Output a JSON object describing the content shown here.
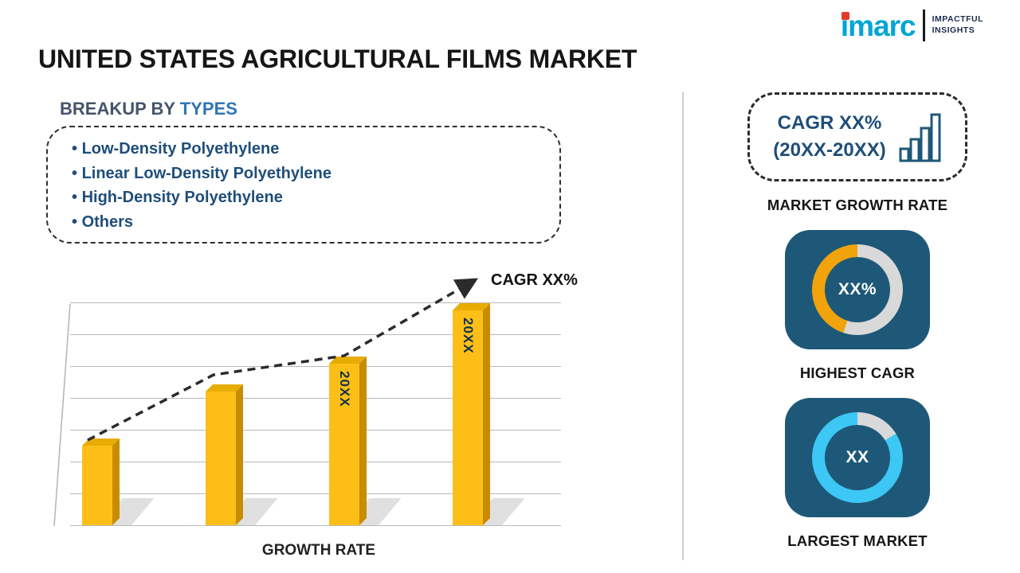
{
  "logo": {
    "brand": "imarc",
    "tagline": [
      "IMPACTFUL",
      "INSIGHTS"
    ]
  },
  "title": "UNITED STATES AGRICULTURAL FILMS MARKET",
  "breakup": {
    "heading_prefix": "BREAKUP BY",
    "heading_highlight": "TYPES",
    "items": [
      "Low-Density Polyethylene",
      "Linear Low-Density Polyethylene",
      "High-Density Polyethylene",
      "Others"
    ]
  },
  "chart_data": {
    "type": "bar",
    "title": "",
    "categories": [
      "",
      "",
      "20XX",
      "20XX"
    ],
    "values": [
      1.0,
      1.68,
      2.03,
      2.7
    ],
    "bar_labels": [
      "",
      "",
      "20XX",
      "20XX"
    ],
    "xlabel": "GROWTH RATE",
    "ylabel": "",
    "trend": {
      "style": "dashed-arrow",
      "label": "CAGR XX%"
    },
    "bar_color": "#fdbf17",
    "gridlines": true,
    "legend": "none"
  },
  "right_panel": {
    "growth_box": {
      "line1": "CAGR XX%",
      "line2": "(20XX-20XX)",
      "icon": "bar-chart-icon",
      "label": "MARKET GROWTH RATE"
    },
    "highest_cagr": {
      "value": "XX%",
      "label": "HIGHEST CAGR",
      "segment_color": "#f0a30a",
      "ring_color": "#d9d9d9"
    },
    "largest_market": {
      "value": "XX",
      "label": "LARGEST MARKET",
      "segment_color": "#d9d9d9",
      "ring_color": "#3cc7f5"
    }
  },
  "colors": {
    "accent_blue": "#2e75b6",
    "dark_navy": "#1f4e79",
    "tile_bg": "#1e5878",
    "bar_yellow": "#fdbf17",
    "cyan": "#3cc7f5",
    "orange": "#f0a30a"
  }
}
